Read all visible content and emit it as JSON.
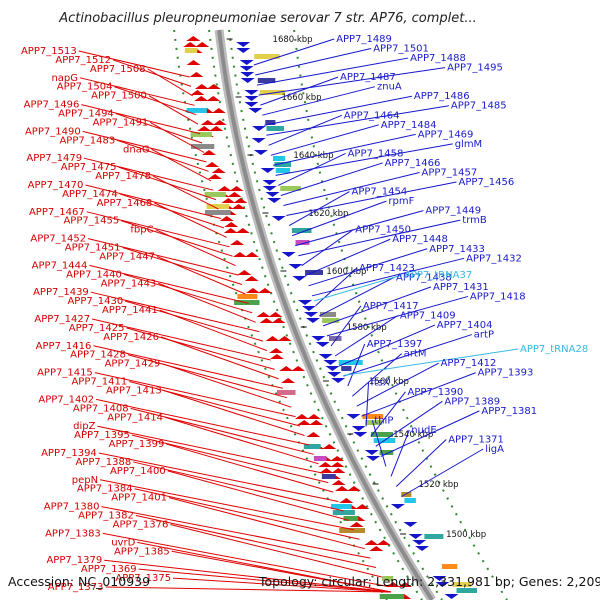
{
  "title": "Actinobacillus pleuropneumoniae serovar 7 str. AP76, complet...",
  "footer": {
    "accession": "Accession: NC_010939",
    "summary": "Topology: circular; Length: 2,331,981 bp; Genes: 2,209"
  },
  "ticks": [
    "1680 kbp",
    "1660 kbp",
    "1640 kbp",
    "1620 kbp",
    "1600 kbp",
    "1580 kbp",
    "1560 kbp",
    "1540 kbp",
    "1520 kbp",
    "1500 kbp"
  ],
  "left_labels": [
    "APP7_1513",
    "APP7_1512",
    "APP7_1508",
    "napG",
    "APP7_1504",
    "APP7_1500",
    "APP7_1496",
    "APP7_1494",
    "APP7_1491",
    "APP7_1490",
    "APP7_1483",
    "dnaG",
    "APP7_1479",
    "APP7_1475",
    "APP7_1478",
    "APP7_1470",
    "APP7_1474",
    "APP7_1468",
    "APP7_1467",
    "APP7_1455",
    "fbpC",
    "APP7_1452",
    "APP7_1451",
    "APP7_1447",
    "APP7_1444",
    "APP7_1440",
    "APP7_1443",
    "APP7_1439",
    "APP7_1430",
    "APP7_1441",
    "APP7_1427",
    "APP7_1425",
    "APP7_1426",
    "APP7_1416",
    "APP7_1428",
    "APP7_1429",
    "APP7_1415",
    "APP7_1411",
    "APP7_1413",
    "APP7_1402",
    "APP7_1408",
    "APP7_1414",
    "dipZ",
    "APP7_1395",
    "APP7_1399",
    "APP7_1394",
    "APP7_1388",
    "APP7_1400",
    "pepN",
    "APP7_1384",
    "APP7_1401",
    "APP7_1380",
    "APP7_1382",
    "APP7_1376",
    "APP7_1383",
    "uvrD",
    "APP7_1385",
    "APP7_1379",
    "APP7_1369",
    "APP7_1375",
    "APP7_1373"
  ],
  "right_labels": [
    "APP7_1489",
    "APP7_1501",
    "APP7_1488",
    "APP7_1495",
    "APP7_1487",
    "znuA",
    "APP7_1486",
    "APP7_1485",
    "APP7_1464",
    "APP7_1484",
    "APP7_1469",
    "glmM",
    "APP7_1458",
    "APP7_1466",
    "APP7_1457",
    "APP7_1456",
    "APP7_1454",
    "rpmF",
    "APP7_1449",
    "trmB",
    "APP7_1450",
    "APP7_1448",
    "APP7_1433",
    "APP7_1432",
    "APP7_1423",
    "APP7_1438",
    "APP7_1431",
    "APP7_1418",
    "APP7_1417",
    "APP7_1409",
    "APP7_1404",
    "artP",
    "APP7_1397",
    "artM",
    "APP7_1412",
    "APP7_1393",
    "ftsX",
    "APP7_1390",
    "APP7_1389",
    "APP7_1381",
    "thiP",
    "nudE",
    "APP7_1371",
    "ligA"
  ],
  "cyan_labels": [
    "APP7_tRNA37",
    "APP7_tRNA28"
  ],
  "colors": {
    "forward": "#e00000",
    "reverse": "#1515cc",
    "trna": "#33b8e6",
    "backbone": "#8c8c8c",
    "dashed": "#2e8b2e"
  }
}
